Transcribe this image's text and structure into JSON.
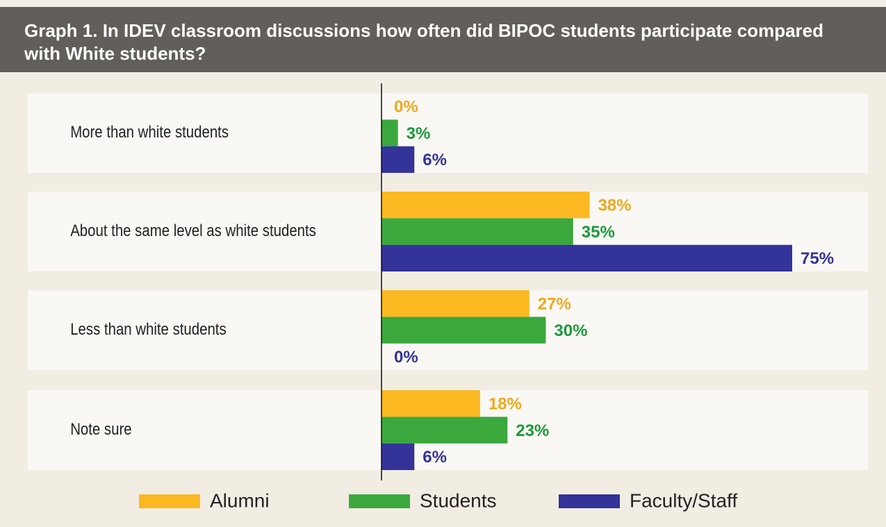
{
  "chart_data": {
    "type": "bar",
    "orientation": "horizontal",
    "title": "Graph 1. In IDEV classroom discussions how often did BIPOC students participate compared with White students?",
    "categories": [
      "More than white students",
      "About the same level as white students",
      "Less than white students",
      "Note sure"
    ],
    "series": [
      {
        "name": "Alumni",
        "color": "#fbb820",
        "label_color": "#f0a81c",
        "values": [
          0,
          38,
          27,
          18
        ],
        "value_labels": [
          "0%",
          "38%",
          "27%",
          "18%"
        ]
      },
      {
        "name": "Students",
        "color": "#3aa83c",
        "label_color": "#1a9a3a",
        "values": [
          3,
          35,
          30,
          23
        ],
        "value_labels": [
          "3%",
          "35%",
          "30%",
          "23%"
        ]
      },
      {
        "name": "Faculty/Staff",
        "color": "#333399",
        "label_color": "#333399",
        "values": [
          6,
          75,
          0,
          6
        ],
        "value_labels": [
          "6%",
          "75%",
          "0%",
          "6%"
        ]
      }
    ],
    "legend": "bottom"
  }
}
